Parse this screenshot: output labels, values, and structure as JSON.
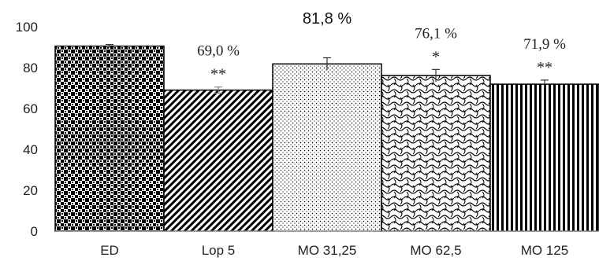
{
  "chart_data": {
    "type": "bar",
    "categories": [
      "ED",
      "Lop 5",
      "MO 31,25",
      "MO 62,5",
      "MO 125"
    ],
    "values": [
      90.5,
      69.0,
      81.8,
      76.1,
      71.9
    ],
    "errors": [
      0.8,
      1.5,
      3.0,
      3.0,
      2.0
    ],
    "yticks": [
      0,
      20,
      40,
      60,
      80,
      100
    ],
    "ylim": [
      0,
      100
    ],
    "data_labels": [
      "",
      "69,0 %",
      "81,8 %",
      "76,1 %",
      "71,9 %"
    ],
    "significance": [
      "",
      "**",
      "",
      "*",
      "**"
    ],
    "fill_patterns": [
      "checker",
      "diagonal",
      "dots",
      "waves",
      "vertical-lines"
    ],
    "colors": {
      "ink": "#000000",
      "background": "#ffffff"
    },
    "grid": false
  }
}
